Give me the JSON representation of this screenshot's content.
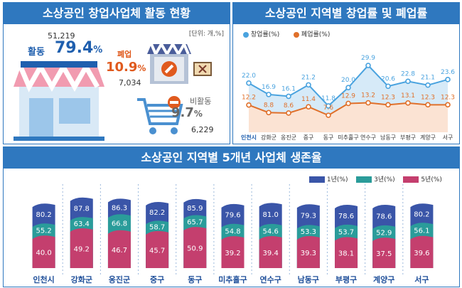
{
  "panel1": {
    "title": "소상공인 창업사업체 활동 현황",
    "unit": "[단위: 개,%]",
    "active": {
      "count": "51,219",
      "label": "활동",
      "pct": "79.4",
      "pct_sign": "%"
    },
    "closed": {
      "label": "폐업",
      "pct": "10.9",
      "pct_sign": "%",
      "count": "7,034"
    },
    "inactive": {
      "label": "비활동",
      "pct": "9.7",
      "pct_sign": "%",
      "count": "6,229"
    },
    "colors": {
      "active": "#1f5fae",
      "closed": "#e05a1e",
      "inactive": "#666666"
    }
  },
  "panel2": {
    "title": "소상공인 지역별 창업률 및 폐업률"
  },
  "panel3": {
    "title": "소상공인 지역별 5개년 사업체 생존율"
  },
  "chart_data": [
    {
      "type": "line",
      "title": "소상공인 지역별 창업률 및 폐업률",
      "categories": [
        "인천시",
        "강화군",
        "옹진군",
        "중구",
        "동구",
        "미추홀구",
        "연수구",
        "남동구",
        "부평구",
        "계양구",
        "서구"
      ],
      "series": [
        {
          "name": "창업률(%)",
          "color": "#4aa3df",
          "values": [
            22.0,
            16.9,
            16.1,
            21.2,
            11.8,
            20.0,
            29.9,
            20.6,
            22.8,
            21.1,
            23.6
          ]
        },
        {
          "name": "폐업률(%)",
          "color": "#e0702a",
          "values": [
            12.2,
            8.8,
            8.6,
            11.4,
            7.6,
            12.9,
            13.2,
            12.3,
            13.1,
            12.3,
            12.3
          ]
        }
      ],
      "ylim": [
        0,
        35
      ]
    },
    {
      "type": "bar",
      "title": "소상공인 지역별 5개년 사업체 생존율",
      "categories": [
        "인천시",
        "강화군",
        "옹진군",
        "중구",
        "동구",
        "미추홀구",
        "연수구",
        "남동구",
        "부평구",
        "계양구",
        "서구"
      ],
      "series": [
        {
          "name": "1년(%)",
          "color": "#3a55a8",
          "values": [
            80.2,
            87.8,
            86.3,
            82.2,
            85.9,
            79.6,
            81.0,
            79.3,
            78.6,
            78.6,
            80.2
          ]
        },
        {
          "name": "3년(%)",
          "color": "#2a9c9a",
          "values": [
            55.2,
            63.4,
            66.8,
            58.7,
            65.7,
            54.8,
            54.6,
            53.3,
            53.7,
            52.9,
            56.1
          ]
        },
        {
          "name": "5년(%)",
          "color": "#c43f6e",
          "values": [
            40.0,
            49.2,
            46.7,
            45.7,
            50.9,
            39.2,
            39.4,
            39.3,
            38.1,
            37.5,
            39.6
          ]
        }
      ],
      "ylim": [
        0,
        100
      ]
    }
  ]
}
